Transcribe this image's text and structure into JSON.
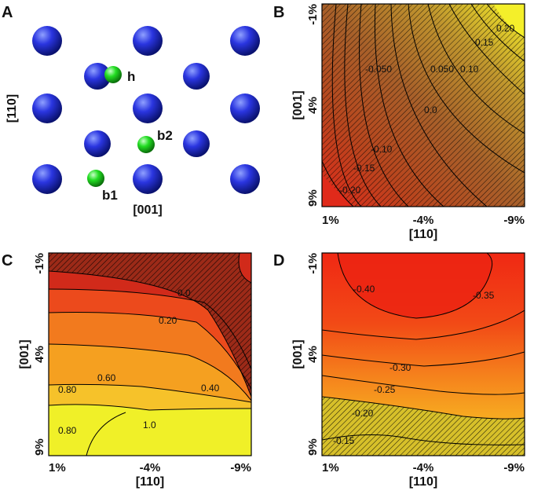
{
  "panels": {
    "A": {
      "label": "A",
      "axis_vertical": "[110]",
      "axis_horizontal": "[001]",
      "atoms": [
        "h",
        "b2",
        "b1"
      ]
    },
    "B": {
      "label": "B",
      "xlabel": "[110]",
      "ylabel": "[001]",
      "xticks": [
        "1%",
        "-4%",
        "-9%"
      ],
      "yticks": [
        "-1%",
        "4%",
        "9%"
      ],
      "contour_labels": [
        "0.20",
        "0.15",
        "-0.050",
        "0.050",
        "0.10",
        "0.0",
        "-0.10",
        "-0.15",
        "-0.20"
      ]
    },
    "C": {
      "label": "C",
      "xlabel": "[110]",
      "ylabel": "[001]",
      "xticks": [
        "1%",
        "-4%",
        "-9%"
      ],
      "yticks": [
        "-1%",
        "4%",
        "9%"
      ],
      "contour_labels": [
        "0.0",
        "0.20",
        "0.60",
        "0.40",
        "0.80",
        "0.80",
        "1.0"
      ]
    },
    "D": {
      "label": "D",
      "xlabel": "[110]",
      "ylabel": "[001]",
      "xticks": [
        "1%",
        "-4%",
        "-9%"
      ],
      "yticks": [
        "-1%",
        "4%",
        "9%"
      ],
      "contour_labels": [
        "-0.40",
        "-0.35",
        "-0.30",
        "-0.25",
        "-0.20",
        "-0.15"
      ]
    }
  },
  "colors": {
    "host_atom": "#2a35e0",
    "impurity_atom": "#22dd22",
    "map_low": "#d21e1e",
    "map_high": "#f0f028",
    "map_dark": "#8c2f1c"
  }
}
